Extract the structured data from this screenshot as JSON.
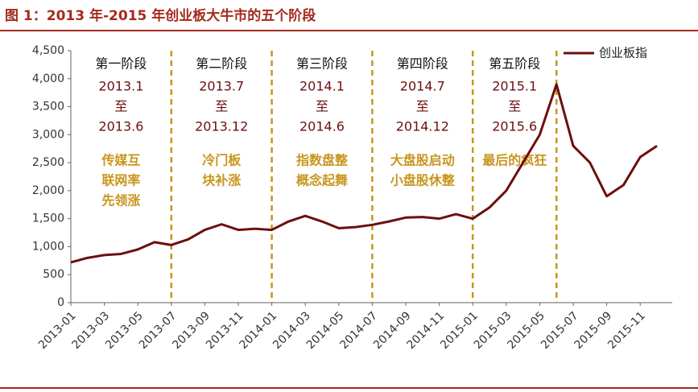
{
  "chart_data": {
    "type": "line",
    "title": "图 1：2013 年-2015 年创业板大牛市的五个阶段",
    "x": [
      "2013-01",
      "2013-02",
      "2013-03",
      "2013-04",
      "2013-05",
      "2013-06",
      "2013-07",
      "2013-08",
      "2013-09",
      "2013-10",
      "2013-11",
      "2013-12",
      "2014-01",
      "2014-02",
      "2014-03",
      "2014-04",
      "2014-05",
      "2014-06",
      "2014-07",
      "2014-08",
      "2014-09",
      "2014-10",
      "2014-11",
      "2014-12",
      "2015-01",
      "2015-02",
      "2015-03",
      "2015-04",
      "2015-05",
      "2015-06",
      "2015-07",
      "2015-08",
      "2015-09",
      "2015-10",
      "2015-11",
      "2015-12"
    ],
    "series": [
      {
        "name": "创业板指",
        "color": "#6b0f0f",
        "values": [
          720,
          800,
          850,
          870,
          950,
          1080,
          1030,
          1130,
          1300,
          1400,
          1300,
          1320,
          1300,
          1450,
          1550,
          1450,
          1330,
          1350,
          1390,
          1450,
          1520,
          1530,
          1500,
          1580,
          1500,
          1700,
          2000,
          2500,
          3000,
          3900,
          2800,
          2500,
          1900,
          2100,
          2600,
          2800
        ]
      }
    ],
    "xlim": [
      "2013-01",
      "2015-12"
    ],
    "xticks": [
      "2013-01",
      "2013-03",
      "2013-05",
      "2013-07",
      "2013-09",
      "2013-11",
      "2014-01",
      "2014-03",
      "2014-05",
      "2014-07",
      "2014-09",
      "2014-11",
      "2015-01",
      "2015-03",
      "2015-05",
      "2015-07",
      "2015-09",
      "2015-11"
    ],
    "ylim": [
      0,
      4500
    ],
    "yticks": [
      0,
      500,
      {
        "value": 1000,
        "label": "1,000"
      },
      {
        "value": 1500,
        "label": "1,500"
      },
      {
        "value": 2000,
        "label": "2,000"
      },
      {
        "value": 2500,
        "label": "2,500"
      },
      {
        "value": 3000,
        "label": "3,000"
      },
      {
        "value": 3500,
        "label": "3,500"
      },
      {
        "value": 4000,
        "label": "4,000"
      },
      {
        "value": 4500,
        "label": "4,500"
      }
    ],
    "boundaries": [
      "2013-07",
      "2014-01",
      "2014-07",
      "2015-01",
      "2015-06"
    ],
    "boundary_color": "#c8961e",
    "legend": "top-right",
    "phases": [
      {
        "title": "第一阶段",
        "dates": [
          "2013.1",
          "至",
          "2013.6"
        ],
        "desc": [
          "传媒互",
          "联网率",
          "先领涨"
        ]
      },
      {
        "title": "第二阶段",
        "dates": [
          "2013.7",
          "至",
          "2013.12"
        ],
        "desc": [
          "冷门板",
          "块补涨"
        ]
      },
      {
        "title": "第三阶段",
        "dates": [
          "2014.1",
          "至",
          "2014.6"
        ],
        "desc": [
          "指数盘整",
          "概念起舞"
        ]
      },
      {
        "title": "第四阶段",
        "dates": [
          "2014.7",
          "至",
          "2014.12"
        ],
        "desc": [
          "大盘股启动",
          "小盘股休整"
        ]
      },
      {
        "title": "第五阶段",
        "dates": [
          "2015.1",
          "至",
          "2015.6"
        ],
        "desc": [
          "最后的疯狂"
        ]
      }
    ]
  }
}
